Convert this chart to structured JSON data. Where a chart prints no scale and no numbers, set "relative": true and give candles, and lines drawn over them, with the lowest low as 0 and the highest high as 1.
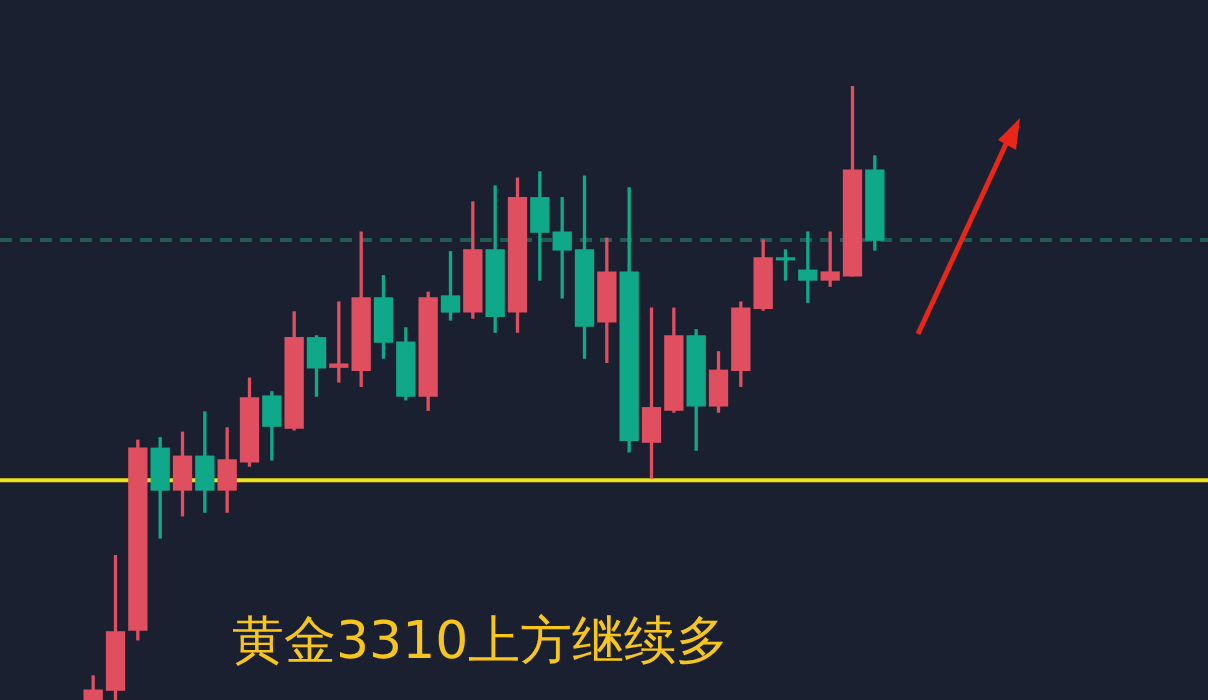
{
  "chart_data": {
    "type": "candlestick",
    "relative": true,
    "tick_labels": false,
    "legend": false,
    "categories": [
      null,
      null,
      null,
      null,
      null,
      null,
      null,
      null,
      null,
      null,
      null,
      null,
      null,
      null,
      null,
      null,
      null,
      null,
      null,
      null,
      null,
      null,
      null,
      null,
      null,
      null,
      null,
      null,
      null,
      null,
      null,
      null,
      null,
      null,
      null,
      null
    ],
    "ohlc": [
      [
        0,
        0.039,
        0,
        0.016
      ],
      [
        0.016,
        0.235,
        0,
        0.111
      ],
      [
        0.114,
        0.423,
        0.098,
        0.41
      ],
      [
        0.41,
        0.427,
        0.264,
        0.342
      ],
      [
        0.342,
        0.436,
        0.3,
        0.397
      ],
      [
        0.397,
        0.469,
        0.306,
        0.342
      ],
      [
        0.342,
        0.443,
        0.306,
        0.391
      ],
      [
        0.388,
        0.524,
        0.381,
        0.492
      ],
      [
        0.495,
        0.502,
        0.391,
        0.446
      ],
      [
        0.443,
        0.632,
        0.44,
        0.59
      ],
      [
        0.59,
        0.593,
        0.495,
        0.541
      ],
      [
        0.542,
        0.648,
        0.518,
        0.547
      ],
      [
        0.537,
        0.762,
        0.511,
        0.655
      ],
      [
        0.655,
        0.691,
        0.557,
        0.583
      ],
      [
        0.583,
        0.606,
        0.489,
        0.495
      ],
      [
        0.495,
        0.664,
        0.472,
        0.655
      ],
      [
        0.658,
        0.73,
        0.619,
        0.632
      ],
      [
        0.632,
        0.811,
        0.622,
        0.733
      ],
      [
        0.733,
        0.837,
        0.599,
        0.625
      ],
      [
        0.632,
        0.85,
        0.599,
        0.818
      ],
      [
        0.818,
        0.86,
        0.684,
        0.762
      ],
      [
        0.762,
        0.818,
        0.655,
        0.733
      ],
      [
        0.733,
        0.853,
        0.557,
        0.609
      ],
      [
        0.616,
        0.752,
        0.55,
        0.697
      ],
      [
        0.697,
        0.834,
        0.404,
        0.423
      ],
      [
        0.42,
        0.638,
        0.362,
        0.476
      ],
      [
        0.472,
        0.638,
        0.469,
        0.593
      ],
      [
        0.593,
        0.603,
        0.407,
        0.479
      ],
      [
        0.479,
        0.567,
        0.469,
        0.537
      ],
      [
        0.537,
        0.648,
        0.511,
        0.638
      ],
      [
        0.638,
        0.749,
        0.635,
        0.72
      ],
      [
        0.72,
        0.733,
        0.684,
        0.717
      ],
      [
        0.7,
        0.762,
        0.648,
        0.684
      ],
      [
        0.684,
        0.762,
        0.674,
        0.697
      ],
      [
        0.691,
        1,
        0.691,
        0.863
      ],
      [
        0.863,
        0.886,
        0.733,
        0.749
      ]
    ],
    "colors": [
      "#e04f5f",
      "#e04f5f",
      "#e04f5f",
      "#0fa98a",
      "#e04f5f",
      "#0fa98a",
      "#e04f5f",
      "#e04f5f",
      "#0fa98a",
      "#e04f5f",
      "#0fa98a",
      "#e04f5f",
      "#e04f5f",
      "#0fa98a",
      "#0fa98a",
      "#e04f5f",
      "#0fa98a",
      "#e04f5f",
      "#0fa98a",
      "#e04f5f",
      "#0fa98a",
      "#0fa98a",
      "#0fa98a",
      "#e04f5f",
      "#0fa98a",
      "#e04f5f",
      "#e04f5f",
      "#0fa98a",
      "#e04f5f",
      "#e04f5f",
      "#e04f5f",
      "#0fa98a",
      "#0fa98a",
      "#e04f5f",
      "#e04f5f",
      "#0fa98a"
    ],
    "ref_lines": [
      {
        "axis": "y",
        "value": 0.358,
        "color": "#f0e020"
      },
      {
        "axis": "y",
        "value": 0.749,
        "color": "#1f5c52",
        "line_style": "dashed"
      }
    ],
    "annotations": [
      "黄金3310上方继续多"
    ]
  }
}
